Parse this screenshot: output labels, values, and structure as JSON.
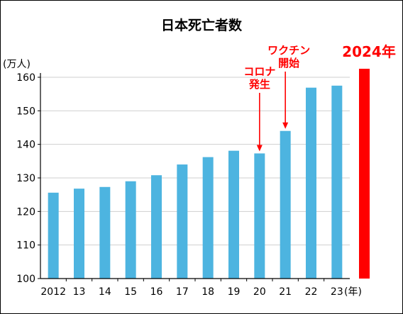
{
  "chart_data": {
    "type": "bar",
    "title": "日本死亡者数",
    "ylabel": "(万人)",
    "xunit": "(年)",
    "categories": [
      "2012",
      "13",
      "14",
      "15",
      "16",
      "17",
      "18",
      "19",
      "20",
      "21",
      "22",
      "23"
    ],
    "values": [
      125.6,
      126.8,
      127.3,
      129.0,
      130.8,
      134.0,
      136.2,
      138.1,
      137.3,
      144.0,
      156.9,
      157.5
    ],
    "ylim": [
      100,
      160
    ],
    "yticks": [
      100,
      110,
      120,
      130,
      140,
      150,
      160
    ],
    "grid": true,
    "colors": {
      "bar": "#4db4e0",
      "highlight": "#ff0000",
      "annotation": "#ff0000"
    },
    "highlight": {
      "label": "2024年"
    },
    "annotations": [
      {
        "lines": [
          "コロナ",
          "発生"
        ],
        "category": "20"
      },
      {
        "lines": [
          "ワクチン",
          "開始"
        ],
        "category": "21"
      }
    ]
  }
}
